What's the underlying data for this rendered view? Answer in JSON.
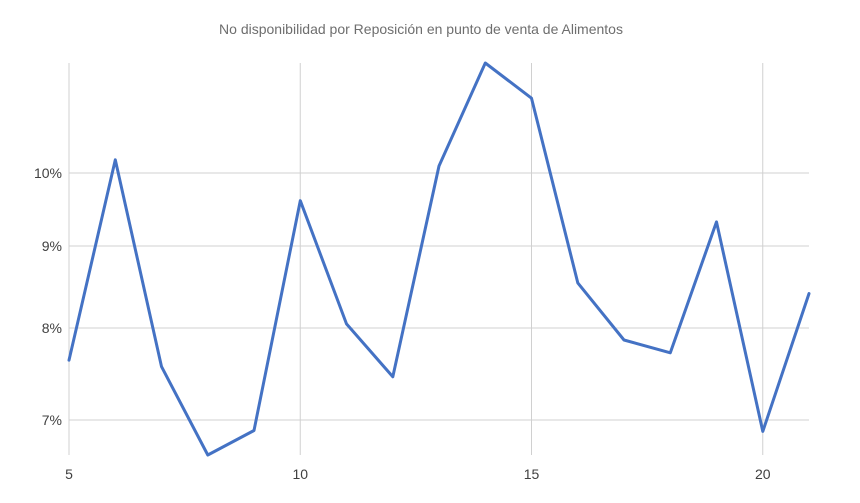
{
  "chart_data": {
    "type": "line",
    "title": "No disponibilidad por Reposición en punto de venta de Alimentos",
    "xlabel": "",
    "ylabel": "",
    "x": [
      5,
      6,
      7,
      8,
      9,
      10,
      11,
      12,
      13,
      14,
      15,
      16,
      17,
      18,
      19,
      20,
      21
    ],
    "series": [
      {
        "name": "",
        "color": "#4472c4",
        "values": [
          7.65,
          10.15,
          7.58,
          6.6,
          6.88,
          9.62,
          8.05,
          7.47,
          10.08,
          11.25,
          10.85,
          8.55,
          7.87,
          7.73,
          9.33,
          6.87,
          8.42
        ]
      }
    ],
    "x_ticks": [
      5,
      10,
      15,
      20
    ],
    "y_ticks": [
      {
        "value": 7.0,
        "label": "7%"
      },
      {
        "value": 8.0,
        "label": "8%"
      },
      {
        "value": 9.0,
        "label": "9%"
      },
      {
        "value": 10.0,
        "label": "10%"
      }
    ],
    "xlim": [
      5,
      21
    ],
    "ylim": [
      6.6,
      11.25
    ],
    "grid": true
  }
}
